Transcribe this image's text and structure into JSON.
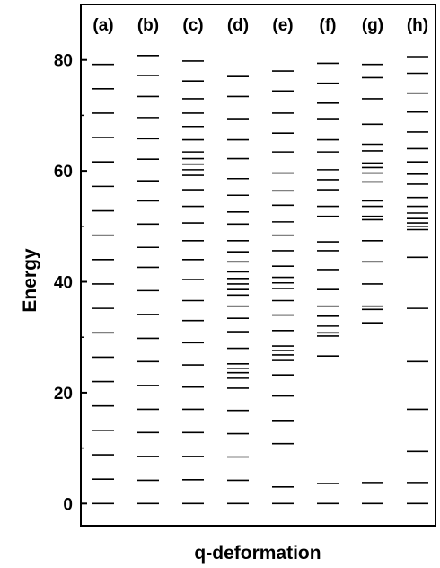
{
  "chart_data": {
    "type": "energy-level-spectrum",
    "ylabel": "Energy",
    "xlabel": "q-deformation",
    "ylim": [
      -4,
      90
    ],
    "yticks": [
      0,
      20,
      40,
      60,
      80
    ],
    "yticks_minor": [
      10,
      30,
      50,
      70
    ],
    "line_color": "#000000",
    "columns": [
      {
        "label": "(a)",
        "levels": [
          0,
          4.4,
          8.8,
          13.2,
          17.6,
          22.0,
          26.4,
          30.8,
          35.2,
          39.6,
          44.0,
          48.4,
          52.8,
          57.2,
          61.6,
          66.0,
          70.4,
          74.8,
          79.2
        ]
      },
      {
        "label": "(b)",
        "levels": [
          0,
          4.2,
          8.5,
          12.8,
          17.0,
          21.3,
          25.6,
          29.8,
          34.1,
          38.4,
          42.6,
          46.2,
          50.4,
          54.6,
          58.2,
          62.1,
          65.8,
          69.6,
          73.4,
          77.2,
          80.8
        ]
      },
      {
        "label": "(c)",
        "levels": [
          0,
          4.3,
          8.5,
          12.8,
          17.0,
          21.0,
          25.0,
          29.0,
          33.0,
          36.6,
          40.4,
          44.0,
          47.4,
          50.6,
          53.6,
          56.6,
          59.2,
          60.2,
          61.2,
          62.2,
          63.4,
          65.6,
          68.0,
          70.4,
          73.0,
          76.2,
          79.8
        ]
      },
      {
        "label": "(d)",
        "levels": [
          0,
          4.2,
          8.4,
          12.6,
          16.8,
          20.8,
          22.6,
          23.6,
          24.4,
          25.2,
          28.0,
          31.0,
          33.4,
          35.6,
          37.6,
          38.6,
          39.6,
          40.6,
          41.8,
          43.6,
          45.4,
          47.4,
          50.4,
          52.6,
          55.6,
          58.6,
          62.2,
          65.6,
          69.4,
          73.4,
          77.0
        ]
      },
      {
        "label": "(e)",
        "levels": [
          0,
          3.0,
          10.8,
          15.0,
          19.4,
          23.2,
          25.8,
          26.8,
          27.6,
          28.4,
          31.2,
          34.0,
          36.6,
          38.8,
          39.8,
          40.8,
          42.8,
          45.6,
          48.4,
          50.8,
          53.8,
          56.4,
          59.6,
          63.4,
          66.8,
          70.4,
          74.4,
          78.0
        ]
      },
      {
        "label": "(f)",
        "levels": [
          0,
          3.6,
          26.6,
          30.2,
          30.8,
          32.0,
          33.8,
          35.6,
          38.6,
          42.2,
          45.6,
          47.2,
          51.8,
          53.6,
          56.6,
          58.4,
          60.2,
          63.4,
          65.6,
          69.4,
          72.2,
          75.8,
          79.4
        ]
      },
      {
        "label": "(g)",
        "levels": [
          0,
          3.8,
          32.6,
          35.0,
          35.6,
          39.6,
          43.6,
          47.4,
          51.2,
          51.8,
          53.6,
          54.6,
          58.0,
          59.6,
          60.6,
          61.4,
          63.6,
          64.8,
          68.4,
          73.0,
          76.8,
          79.2
        ]
      },
      {
        "label": "(h)",
        "levels": [
          0,
          3.8,
          9.4,
          17.0,
          25.6,
          35.2,
          44.4,
          49.4,
          50.0,
          50.6,
          51.4,
          52.4,
          53.6,
          55.2,
          57.6,
          59.4,
          61.6,
          64.0,
          67.0,
          70.6,
          74.0,
          77.6,
          80.6
        ]
      }
    ]
  }
}
